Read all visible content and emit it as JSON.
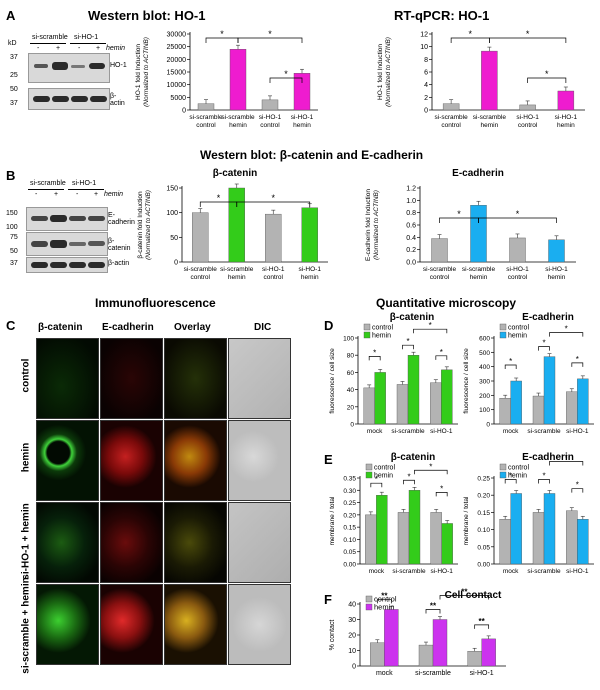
{
  "panelA": {
    "label": "A",
    "title_wb": "Western blot: HO-1",
    "title_qpcr": "RT-qPCR: HO-1",
    "blot": {
      "kd": "kD",
      "group1": "si-scramble",
      "group2": "si-HO-1",
      "treatment": "hemin",
      "signs": [
        "-",
        "+",
        "-",
        "+"
      ],
      "markers": [
        "37",
        "25",
        "50",
        "37"
      ],
      "bands": [
        "HO-1",
        "β-actin"
      ]
    }
  },
  "panelB": {
    "label": "B",
    "title": "Western blot: β-catenin and E-cadherin",
    "blot": {
      "group1": "si-scramble",
      "group2": "si-HO-1",
      "treatment": "hemin",
      "signs": [
        "-",
        "+",
        "-",
        "+"
      ],
      "markers": [
        "150",
        "100",
        "75",
        "50",
        "37"
      ],
      "bands": [
        "E-cadherin",
        "β-catenin",
        "β-actin"
      ]
    }
  },
  "panelC": {
    "label": "C",
    "title": "Immunofluorescence",
    "columns": [
      "β-catenin",
      "E-cadherin",
      "Overlay",
      "DIC"
    ],
    "rows": [
      "control",
      "hemin",
      "si-HO-1 + hemin",
      "si-scramble + hemin"
    ]
  },
  "panelD": {
    "label": "D",
    "title": "Quantitative microscopy"
  },
  "panelE": {
    "label": "E"
  },
  "panelF": {
    "label": "F"
  },
  "colors": {
    "control": "#b3b3b3",
    "pink": "#ee1ccf",
    "green": "#33cc1a",
    "blue": "#1aaef0",
    "magenta": "#cc33ee"
  },
  "chart_data": [
    {
      "id": "A1",
      "type": "bar",
      "categories": [
        "si-scramble control",
        "si-scramble hemin",
        "si-HO-1 control",
        "si-HO-1 hemin"
      ],
      "values": [
        2500,
        24000,
        4000,
        14500
      ],
      "ylabel": "HO-1 fold Induction (Normalized to ACTINB)",
      "ylim": [
        0,
        30000
      ],
      "yticks": [
        0,
        5000,
        10000,
        15000,
        20000,
        25000,
        30000
      ],
      "sig": [
        "*",
        "*",
        "*"
      ]
    },
    {
      "id": "A2",
      "type": "bar",
      "categories": [
        "si-scramble control",
        "si-scramble hemin",
        "si-HO-1 control",
        "si-HO-1 hemin"
      ],
      "values": [
        1,
        9.3,
        0.8,
        3
      ],
      "ylabel": "HO-1 fold Induction (Normalized to ACTINB)",
      "ylim": [
        0,
        12
      ],
      "yticks": [
        0,
        2,
        4,
        6,
        8,
        10,
        12
      ],
      "sig": [
        "*",
        "*",
        "*"
      ]
    },
    {
      "id": "B1",
      "type": "bar",
      "title": "β-catenin",
      "categories": [
        "si-scramble control",
        "si-scramble hemin",
        "si-HO-1 control",
        "si-HO-1 hemin"
      ],
      "values": [
        100,
        150,
        97,
        110
      ],
      "ylabel": "β-catenin fold Induction (Normalized to ACTINB)",
      "ylim": [
        0,
        150
      ],
      "yticks": [
        0,
        50,
        100,
        150
      ],
      "sig": [
        "*",
        "*"
      ]
    },
    {
      "id": "B2",
      "type": "bar",
      "title": "E-cadherin",
      "categories": [
        "si-scramble control",
        "si-scramble hemin",
        "si-HO-1 control",
        "si-HO-1 hemin"
      ],
      "values": [
        0.38,
        0.92,
        0.39,
        0.36
      ],
      "ylabel": "E-cadherin fold Induction (Normalized to ACTINB)",
      "ylim": [
        0,
        1.2
      ],
      "yticks": [
        0,
        0.2,
        0.4,
        0.6,
        0.8,
        1.0,
        1.2
      ],
      "sig": [
        "*",
        "*"
      ]
    },
    {
      "id": "D1",
      "type": "bar",
      "title": "β-catenin",
      "categories": [
        "mock",
        "si-scramble",
        "si-HO-1"
      ],
      "series": [
        {
          "name": "control",
          "values": [
            42,
            46,
            48
          ]
        },
        {
          "name": "hemin",
          "values": [
            60,
            80,
            63
          ]
        }
      ],
      "ylabel": "fluorescence / cell size",
      "ylim": [
        0,
        100
      ],
      "yticks": [
        0,
        20,
        40,
        60,
        80,
        100
      ],
      "sig": [
        "*",
        "*",
        "*",
        "*"
      ]
    },
    {
      "id": "D2",
      "type": "bar",
      "title": "E-cadherin",
      "categories": [
        "mock",
        "si-scramble",
        "si-HO-1"
      ],
      "series": [
        {
          "name": "control",
          "values": [
            180,
            195,
            225
          ]
        },
        {
          "name": "hemin",
          "values": [
            300,
            470,
            315
          ]
        }
      ],
      "ylabel": "fluorescence / cell size",
      "ylim": [
        0,
        600
      ],
      "yticks": [
        0,
        100,
        200,
        300,
        400,
        500,
        600
      ],
      "sig": [
        "*",
        "*",
        "*",
        "*"
      ]
    },
    {
      "id": "E1",
      "type": "bar",
      "title": "β-catenin",
      "categories": [
        "mock",
        "si-scramble",
        "si-HO-1"
      ],
      "series": [
        {
          "name": "control",
          "values": [
            0.2,
            0.21,
            0.21
          ]
        },
        {
          "name": "hemin",
          "values": [
            0.28,
            0.3,
            0.165
          ]
        }
      ],
      "ylabel": "membrane / total",
      "ylim": [
        0,
        0.35
      ],
      "yticks": [
        0,
        0.05,
        0.1,
        0.15,
        0.2,
        0.25,
        0.3,
        0.35
      ],
      "sig": [
        "*",
        "*",
        "*",
        "*"
      ]
    },
    {
      "id": "E2",
      "type": "bar",
      "title": "E-cadherin",
      "categories": [
        "mock",
        "si-scramble",
        "si-HO-1"
      ],
      "series": [
        {
          "name": "control",
          "values": [
            0.13,
            0.15,
            0.155
          ]
        },
        {
          "name": "hemin",
          "values": [
            0.205,
            0.205,
            0.13
          ]
        }
      ],
      "ylabel": "membrane / total",
      "ylim": [
        0,
        0.25
      ],
      "yticks": [
        0,
        0.05,
        0.1,
        0.15,
        0.2,
        0.25
      ],
      "sig": [
        "*",
        "*",
        "*",
        "*"
      ]
    },
    {
      "id": "F",
      "type": "bar",
      "title": "Cell contact",
      "categories": [
        "mock",
        "si-scramble",
        "si-HO-1"
      ],
      "series": [
        {
          "name": "control",
          "values": [
            15,
            13.5,
            9.5
          ]
        },
        {
          "name": "hemin",
          "values": [
            36.5,
            30,
            17.5
          ]
        }
      ],
      "ylabel": "% contact",
      "ylim": [
        0,
        40
      ],
      "yticks": [
        0,
        10,
        20,
        30,
        40
      ],
      "sig": [
        "**",
        "**",
        "**",
        "**"
      ]
    }
  ]
}
